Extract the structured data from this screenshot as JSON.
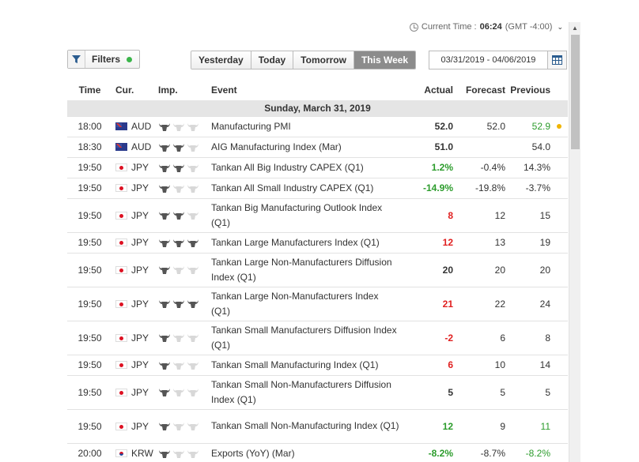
{
  "current_time": {
    "label": "Current Time :",
    "time": "06:24",
    "tz": "(GMT -4:00)"
  },
  "filters": {
    "label": "Filters"
  },
  "tabs": [
    {
      "label": "Yesterday",
      "active": false
    },
    {
      "label": "Today",
      "active": false
    },
    {
      "label": "Tomorrow",
      "active": false
    },
    {
      "label": "This Week",
      "active": true
    }
  ],
  "date_range": "03/31/2019 - 04/06/2019",
  "columns": {
    "time": "Time",
    "cur": "Cur.",
    "imp": "Imp.",
    "event": "Event",
    "actual": "Actual",
    "forecast": "Forecast",
    "previous": "Previous"
  },
  "day_header": "Sunday, March 31, 2019",
  "colors": {
    "positive": "#2c9c2c",
    "negative": "#e02020",
    "bull_on": "#555555",
    "bull_off": "#d8d8d8"
  },
  "rows": [
    {
      "time": "18:00",
      "flag": "au",
      "cur": "AUD",
      "imp": 1,
      "event": "Manufacturing PMI",
      "actual": "52.0",
      "actual_color": "",
      "forecast": "52.0",
      "previous": "52.9",
      "prev_color": "green",
      "dot": true,
      "tall": false
    },
    {
      "time": "18:30",
      "flag": "au",
      "cur": "AUD",
      "imp": 2,
      "event": "AIG Manufacturing Index (Mar)",
      "actual": "51.0",
      "actual_color": "",
      "forecast": "",
      "previous": "54.0",
      "prev_color": "",
      "dot": false,
      "tall": false
    },
    {
      "time": "19:50",
      "flag": "jp",
      "cur": "JPY",
      "imp": 2,
      "event": "Tankan All Big Industry CAPEX (Q1)",
      "actual": "1.2%",
      "actual_color": "green",
      "forecast": "-0.4%",
      "previous": "14.3%",
      "prev_color": "",
      "dot": false,
      "tall": false
    },
    {
      "time": "19:50",
      "flag": "jp",
      "cur": "JPY",
      "imp": 1,
      "event": "Tankan All Small Industry CAPEX (Q1)",
      "actual": "-14.9%",
      "actual_color": "green",
      "forecast": "-19.8%",
      "previous": "-3.7%",
      "prev_color": "",
      "dot": false,
      "tall": false
    },
    {
      "time": "19:50",
      "flag": "jp",
      "cur": "JPY",
      "imp": 2,
      "event": "Tankan Big Manufacturing Outlook Index (Q1)",
      "actual": "8",
      "actual_color": "red",
      "forecast": "12",
      "previous": "15",
      "prev_color": "",
      "dot": false,
      "tall": true
    },
    {
      "time": "19:50",
      "flag": "jp",
      "cur": "JPY",
      "imp": 3,
      "event": "Tankan Large Manufacturers Index (Q1)",
      "actual": "12",
      "actual_color": "red",
      "forecast": "13",
      "previous": "19",
      "prev_color": "",
      "dot": false,
      "tall": false
    },
    {
      "time": "19:50",
      "flag": "jp",
      "cur": "JPY",
      "imp": 1,
      "event": "Tankan Large Non-Manufacturers Diffusion Index (Q1)",
      "actual": "20",
      "actual_color": "",
      "forecast": "20",
      "previous": "20",
      "prev_color": "",
      "dot": false,
      "tall": true
    },
    {
      "time": "19:50",
      "flag": "jp",
      "cur": "JPY",
      "imp": 3,
      "event": "Tankan Large Non-Manufacturers Index (Q1)",
      "actual": "21",
      "actual_color": "red",
      "forecast": "22",
      "previous": "24",
      "prev_color": "",
      "dot": false,
      "tall": true
    },
    {
      "time": "19:50",
      "flag": "jp",
      "cur": "JPY",
      "imp": 1,
      "event": "Tankan Small Manufacturers Diffusion Index (Q1)",
      "actual": "-2",
      "actual_color": "red",
      "forecast": "6",
      "previous": "8",
      "prev_color": "",
      "dot": false,
      "tall": true
    },
    {
      "time": "19:50",
      "flag": "jp",
      "cur": "JPY",
      "imp": 1,
      "event": "Tankan Small Manufacturing Index (Q1)",
      "actual": "6",
      "actual_color": "red",
      "forecast": "10",
      "previous": "14",
      "prev_color": "",
      "dot": false,
      "tall": false
    },
    {
      "time": "19:50",
      "flag": "jp",
      "cur": "JPY",
      "imp": 1,
      "event": "Tankan Small Non-Manufacturers Diffusion Index (Q1)",
      "actual": "5",
      "actual_color": "",
      "forecast": "5",
      "previous": "5",
      "prev_color": "",
      "dot": false,
      "tall": true
    },
    {
      "time": "19:50",
      "flag": "jp",
      "cur": "JPY",
      "imp": 1,
      "event": "Tankan Small Non-Manufacturing Index (Q1)",
      "actual": "12",
      "actual_color": "green",
      "forecast": "9",
      "previous": "11",
      "prev_color": "green",
      "dot": false,
      "tall": true
    },
    {
      "time": "20:00",
      "flag": "kr",
      "cur": "KRW",
      "imp": 1,
      "event": "Exports (YoY) (Mar)",
      "actual": "-8.2%",
      "actual_color": "green",
      "forecast": "-8.7%",
      "previous": "-8.2%",
      "prev_color": "green",
      "dot": false,
      "tall": false
    }
  ]
}
